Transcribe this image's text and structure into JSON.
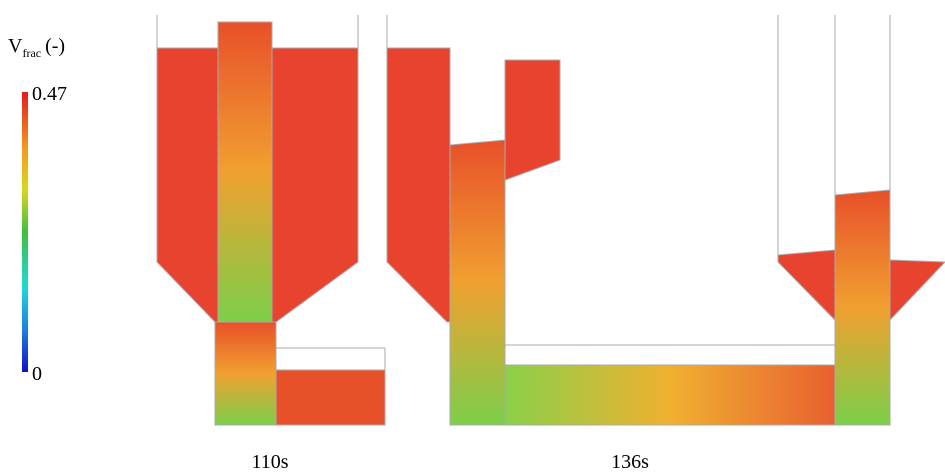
{
  "colorbar": {
    "label": "V",
    "label_sub": "frac",
    "label_unit": "(-)",
    "max_label": "0.47",
    "min_label": "0"
  },
  "captions": [
    "110s",
    "136s"
  ]
}
